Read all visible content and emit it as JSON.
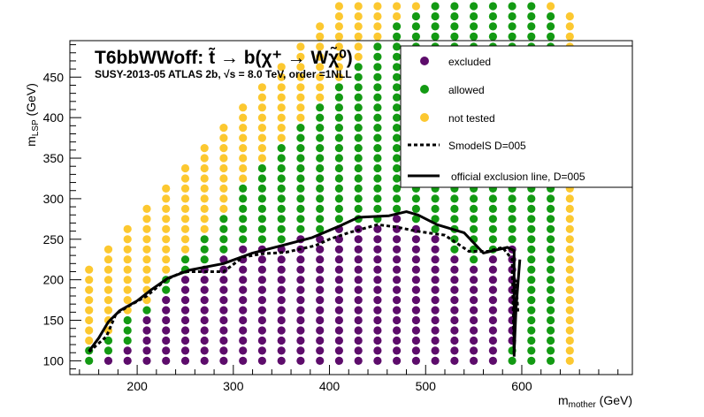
{
  "chart_data": {
    "type": "scatter",
    "title": "T6bbWWoff: t̃ → b(χ⁺ → Wχ̃⁰)",
    "subtitle": "SUSY-2013-05  ATLAS 2b, √s =  8.0 TeV, order =1NLL",
    "xlabel": "m_mother (GeV)",
    "ylabel": "m_LSP (GeV)",
    "xlim": [
      130,
      715
    ],
    "ylim": [
      83,
      495
    ],
    "xticks": [
      200,
      300,
      400,
      500,
      600
    ],
    "yticks": [
      100,
      150,
      200,
      250,
      300,
      350,
      400,
      450
    ],
    "grid": false,
    "legend_position": "top-right",
    "legend": [
      {
        "label": "excluded",
        "kind": "marker",
        "color": "#5d0c6b"
      },
      {
        "label": "allowed",
        "kind": "marker",
        "color": "#139a13"
      },
      {
        "label": "not tested",
        "kind": "marker",
        "color": "#fcc830"
      },
      {
        "label": "SmodelS D=005",
        "kind": "dashed-line",
        "color": "#000000"
      },
      {
        "label": "official exclusion line, D=005",
        "kind": "solid-line",
        "color": "#000000"
      }
    ],
    "grid_points": {
      "x_start": 150,
      "x_step": 20,
      "x_count": 26,
      "y_start": 100,
      "y_step": 12.5,
      "columns": [
        {
          "x": 150,
          "codes": "AAZZZZZZZZ"
        },
        {
          "x": 170,
          "codes": "EAAZZZZZZZZZ"
        },
        {
          "x": 190,
          "codes": "EEAAAZZZZZZZZZ"
        },
        {
          "x": 210,
          "codes": "EEEEEAZZZZZZZZZZ"
        },
        {
          "x": 230,
          "codes": "EEEEEEEAAZZZZZZZZZ"
        },
        {
          "x": 250,
          "codes": "EEEEEEEEEAAZZZZZZZZZ"
        },
        {
          "x": 270,
          "codes": "EEEEEEEEEEAAAZZZZZZZZZ"
        },
        {
          "x": 290,
          "codes": "EEEEEEEEEEEAAAAZZZZZZZZZ"
        },
        {
          "x": 310,
          "codes": "EEEEEEEEEEEEAAAAAAZZZZZZZZ"
        },
        {
          "x": 330,
          "codes": "EEEEEEEEEEEEAAAAAAAAZZZZZZZZ"
        },
        {
          "x": 350,
          "codes": "EEEEEEEEEEEEAAAAAAAAAAZZZZZZZZ"
        },
        {
          "x": 370,
          "codes": "EEEEEEEEEEEEEAAAAAAAAAAAZZZZZZZZ"
        },
        {
          "x": 390,
          "codes": "EEEEEEEEEEEEEAAAAAAAAAAAAAZZZZZZZZ"
        },
        {
          "x": 410,
          "codes": "EEEEEEEEEEEEEEAAAAAAAAAAAAAAZZZZZZZZ"
        },
        {
          "x": 430,
          "codes": "EEEEEEEEEEEEEEAAAAAAAAAAAAAAAAZZZZZZZZ"
        },
        {
          "x": 450,
          "codes": "EEEEEEEEEEEEEEAAAAAAAAAAAAAAAAAAZZZZZZZZ"
        },
        {
          "x": 470,
          "codes": "EEEEEEEEEEEEEEEAAAAAAAAAAAAAAAAAAAZZZZZZ"
        },
        {
          "x": 490,
          "codes": "EEEEEEEEEEEEEEAAAAAAAAAAAAAAAAAAAAAZZZZ"
        },
        {
          "x": 510,
          "codes": "EEEEEEEEEEEEEAAAAAAAAAAAAAAAAAAAAAAAZZ"
        },
        {
          "x": 530,
          "codes": "EEEEEEEEEEEAAAAAAAAAAAAAAAAAAAAAAAAAAZ"
        },
        {
          "x": 550,
          "codes": "EEEEEEEEEEAAAAAAAAAAAAAAAAAAAAAAAAAAAA"
        },
        {
          "x": 570,
          "codes": "EEEEEEEEEEEAAAAAAAAAAAAAAAAAAAAAAAAAAA"
        },
        {
          "x": 590,
          "codes": "AAEEEEEEEEEEAAAAAAAAAAAAAAAAAAAAAAAAAA"
        },
        {
          "x": 610,
          "codes": "AAAAAAAAAAAAAAAAAAAAAAAAAAAAAAAAAAAAA"
        },
        {
          "x": 630,
          "codes": "AAAAAAAAAAAAAAAAAAAAAAAAAAAAAAAAAAAZ"
        },
        {
          "x": 650,
          "codes": "ZZZZZZZZZZZZZZZZZZZZZZZZZZZZZZZZZZZ"
        }
      ]
    },
    "smodels_line": [
      [
        150,
        111
      ],
      [
        168,
        130
      ],
      [
        178,
        158
      ],
      [
        192,
        168
      ],
      [
        210,
        180
      ],
      [
        230,
        200
      ],
      [
        248,
        210
      ],
      [
        290,
        210
      ],
      [
        310,
        228
      ],
      [
        330,
        232
      ],
      [
        355,
        234
      ],
      [
        385,
        242
      ],
      [
        400,
        250
      ],
      [
        420,
        258
      ],
      [
        450,
        268
      ],
      [
        470,
        265
      ],
      [
        490,
        260
      ],
      [
        520,
        255
      ],
      [
        545,
        235
      ],
      [
        565,
        235
      ],
      [
        580,
        240
      ],
      [
        590,
        225
      ],
      [
        592,
        105
      ],
      [
        594,
        200
      ],
      [
        596,
        160
      ]
    ],
    "official_line": [
      [
        150,
        112
      ],
      [
        160,
        128
      ],
      [
        170,
        148
      ],
      [
        182,
        162
      ],
      [
        200,
        174
      ],
      [
        215,
        188
      ],
      [
        232,
        202
      ],
      [
        255,
        212
      ],
      [
        290,
        220
      ],
      [
        320,
        233
      ],
      [
        350,
        242
      ],
      [
        382,
        252
      ],
      [
        410,
        266
      ],
      [
        430,
        277
      ],
      [
        462,
        279
      ],
      [
        480,
        284
      ],
      [
        492,
        280
      ],
      [
        512,
        268
      ],
      [
        540,
        258
      ],
      [
        560,
        233
      ],
      [
        585,
        240
      ],
      [
        592,
        236
      ],
      [
        592,
        110
      ],
      [
        594,
        165
      ],
      [
        597,
        210
      ],
      [
        598,
        225
      ]
    ]
  }
}
